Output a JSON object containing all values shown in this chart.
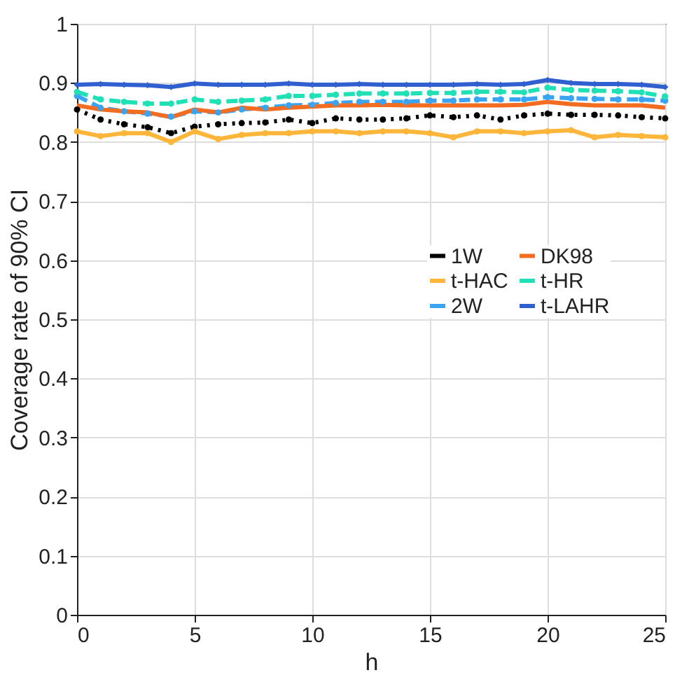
{
  "chart_data": {
    "type": "line",
    "xlabel": "h",
    "ylabel": "Coverage rate of 90% CI",
    "x": [
      0,
      1,
      2,
      3,
      4,
      5,
      6,
      7,
      8,
      9,
      10,
      11,
      12,
      13,
      14,
      15,
      16,
      17,
      18,
      19,
      20,
      21,
      22,
      23,
      24,
      25
    ],
    "xlim": [
      0,
      25
    ],
    "xticks": [
      0,
      5,
      10,
      15,
      20,
      25
    ],
    "ylim": [
      0,
      1
    ],
    "yticks": [
      0,
      0.1,
      0.2,
      0.3,
      0.4,
      0.5,
      0.6,
      0.7,
      0.8,
      0.9,
      1
    ],
    "grid": true,
    "legend": "right",
    "series": [
      {
        "name": "1W",
        "color": "#000000",
        "line_style": "dotted",
        "marker": "circle",
        "values": [
          0.855,
          0.838,
          0.83,
          0.825,
          0.815,
          0.826,
          0.83,
          0.832,
          0.833,
          0.838,
          0.832,
          0.84,
          0.838,
          0.838,
          0.84,
          0.845,
          0.842,
          0.845,
          0.838,
          0.845,
          0.848,
          0.846,
          0.846,
          0.845,
          0.842,
          0.84
        ]
      },
      {
        "name": "t-HAC",
        "color": "#fdb53a",
        "line_style": "solid",
        "marker": "circle",
        "values": [
          0.818,
          0.81,
          0.815,
          0.815,
          0.8,
          0.818,
          0.805,
          0.812,
          0.815,
          0.815,
          0.818,
          0.818,
          0.815,
          0.818,
          0.818,
          0.815,
          0.808,
          0.818,
          0.818,
          0.815,
          0.818,
          0.82,
          0.808,
          0.812,
          0.81,
          0.808
        ]
      },
      {
        "name": "2W",
        "color": "#3ba4f2",
        "line_style": "dashed",
        "marker": "circle",
        "values": [
          0.878,
          0.858,
          0.852,
          0.848,
          0.843,
          0.852,
          0.85,
          0.855,
          0.858,
          0.862,
          0.863,
          0.866,
          0.868,
          0.868,
          0.868,
          0.87,
          0.87,
          0.872,
          0.872,
          0.872,
          0.876,
          0.874,
          0.873,
          0.872,
          0.872,
          0.87
        ]
      },
      {
        "name": "DK98",
        "color": "#f26c21",
        "line_style": "solid",
        "marker": "none",
        "values": [
          0.862,
          0.855,
          0.852,
          0.85,
          0.842,
          0.855,
          0.85,
          0.858,
          0.855,
          0.858,
          0.86,
          0.862,
          0.862,
          0.863,
          0.862,
          0.862,
          0.862,
          0.862,
          0.862,
          0.863,
          0.868,
          0.864,
          0.862,
          0.862,
          0.862,
          0.858
        ]
      },
      {
        "name": "t-HR",
        "color": "#20e0b5",
        "line_style": "dashed",
        "marker": "circle",
        "values": [
          0.885,
          0.872,
          0.868,
          0.865,
          0.865,
          0.872,
          0.868,
          0.87,
          0.872,
          0.878,
          0.878,
          0.88,
          0.882,
          0.882,
          0.882,
          0.883,
          0.883,
          0.885,
          0.885,
          0.884,
          0.892,
          0.888,
          0.887,
          0.886,
          0.884,
          0.877
        ]
      },
      {
        "name": "t-LAHR",
        "color": "#3060d0",
        "line_style": "solid",
        "marker": "diamond",
        "values": [
          0.897,
          0.898,
          0.897,
          0.896,
          0.893,
          0.899,
          0.897,
          0.897,
          0.897,
          0.899,
          0.897,
          0.897,
          0.898,
          0.897,
          0.897,
          0.897,
          0.897,
          0.898,
          0.897,
          0.898,
          0.905,
          0.9,
          0.898,
          0.898,
          0.897,
          0.893
        ]
      }
    ]
  }
}
